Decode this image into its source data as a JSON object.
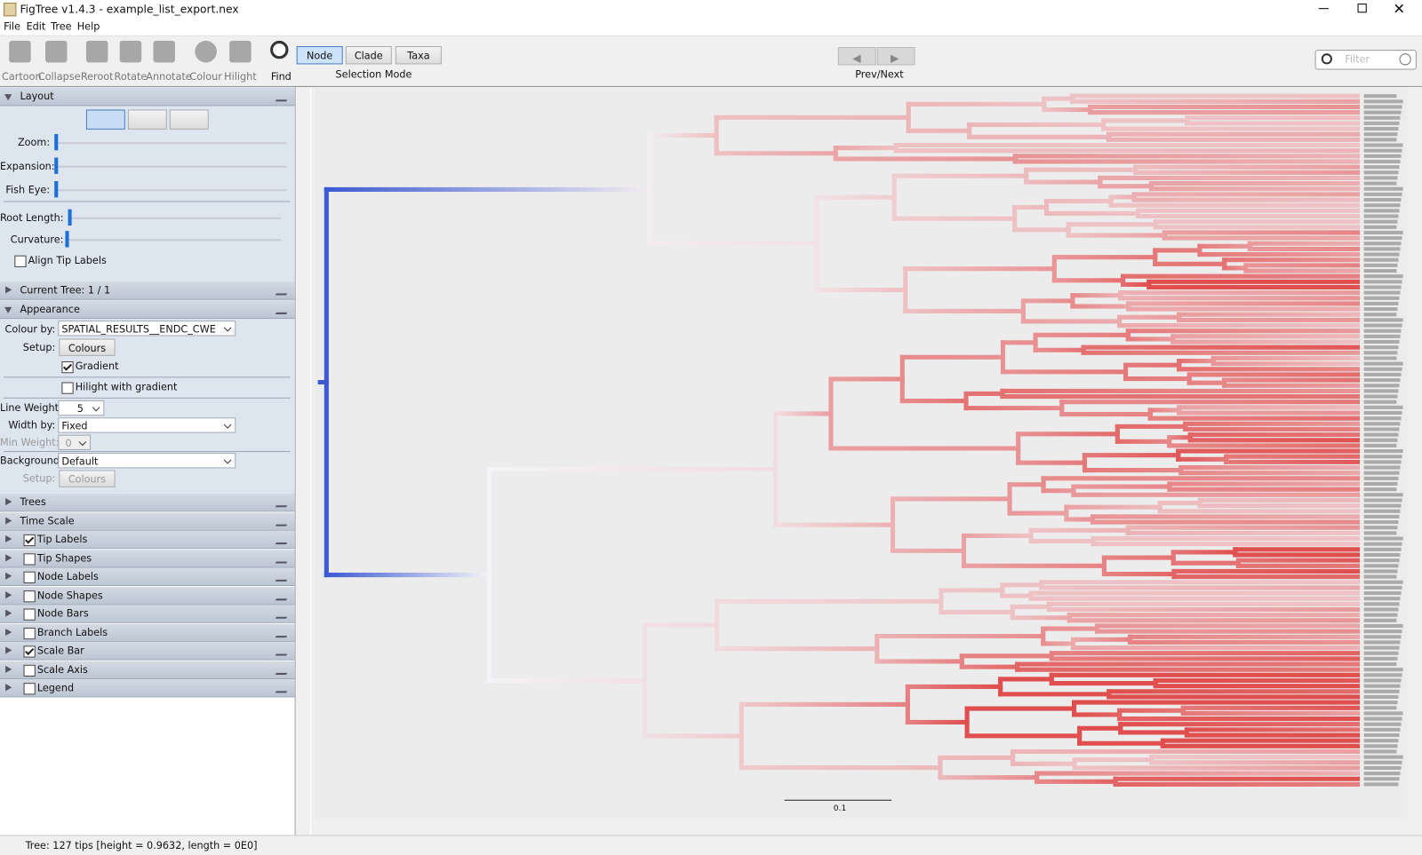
{
  "window": {
    "title": "FigTree v1.4.3 - example_list_export.nex"
  },
  "menu": [
    "File",
    "Edit",
    "Tree",
    "Help"
  ],
  "toolbar": {
    "tools": [
      "Cartoon",
      "Collapse",
      "Reroot",
      "Rotate",
      "Annotate",
      "Colour",
      "Hilight",
      "Find"
    ],
    "selection_modes": [
      "Node",
      "Clade",
      "Taxa"
    ],
    "selection_label": "Selection Mode",
    "prev_next_label": "Prev/Next",
    "filter_placeholder": "Filter"
  },
  "layout_panel": {
    "title": "Layout",
    "sliders": [
      "Zoom:",
      "Expansion:",
      "Fish Eye:",
      "Root Length:",
      "Curvature:"
    ],
    "align_tip_labels": "Align Tip Labels"
  },
  "current_tree": "Current Tree: 1 / 1",
  "appearance": {
    "title": "Appearance",
    "colour_by_label": "Colour by:",
    "colour_by_value": "SPATIAL_RESULTS__ENDC_CWE",
    "setup_label": "Setup:",
    "colours_button": "Colours",
    "gradient": "Gradient",
    "hilight_gradient": "Hilight with gradient",
    "line_weight_label": "Line Weight:",
    "line_weight_value": "5",
    "width_by_label": "Width by:",
    "width_by_value": "Fixed",
    "min_weight_label": "Min Weight:",
    "min_weight_value": "0",
    "background_label": "Background:",
    "background_value": "Default",
    "setup2_label": "Setup:",
    "colours2_button": "Colours"
  },
  "sections": [
    {
      "label": "Trees"
    },
    {
      "label": "Time Scale"
    },
    {
      "label": "Tip Labels",
      "checked": true
    },
    {
      "label": "Tip Shapes",
      "checked": false
    },
    {
      "label": "Node Labels",
      "checked": false
    },
    {
      "label": "Node Shapes",
      "checked": false
    },
    {
      "label": "Node Bars",
      "checked": false
    },
    {
      "label": "Branch Labels",
      "checked": false
    },
    {
      "label": "Scale Bar",
      "checked": true
    },
    {
      "label": "Scale Axis",
      "checked": false
    },
    {
      "label": "Legend",
      "checked": false
    }
  ],
  "scale_bar_label": "0.1",
  "status": "Tree: 127 tips [height = 0.9632, length = 0E0]"
}
